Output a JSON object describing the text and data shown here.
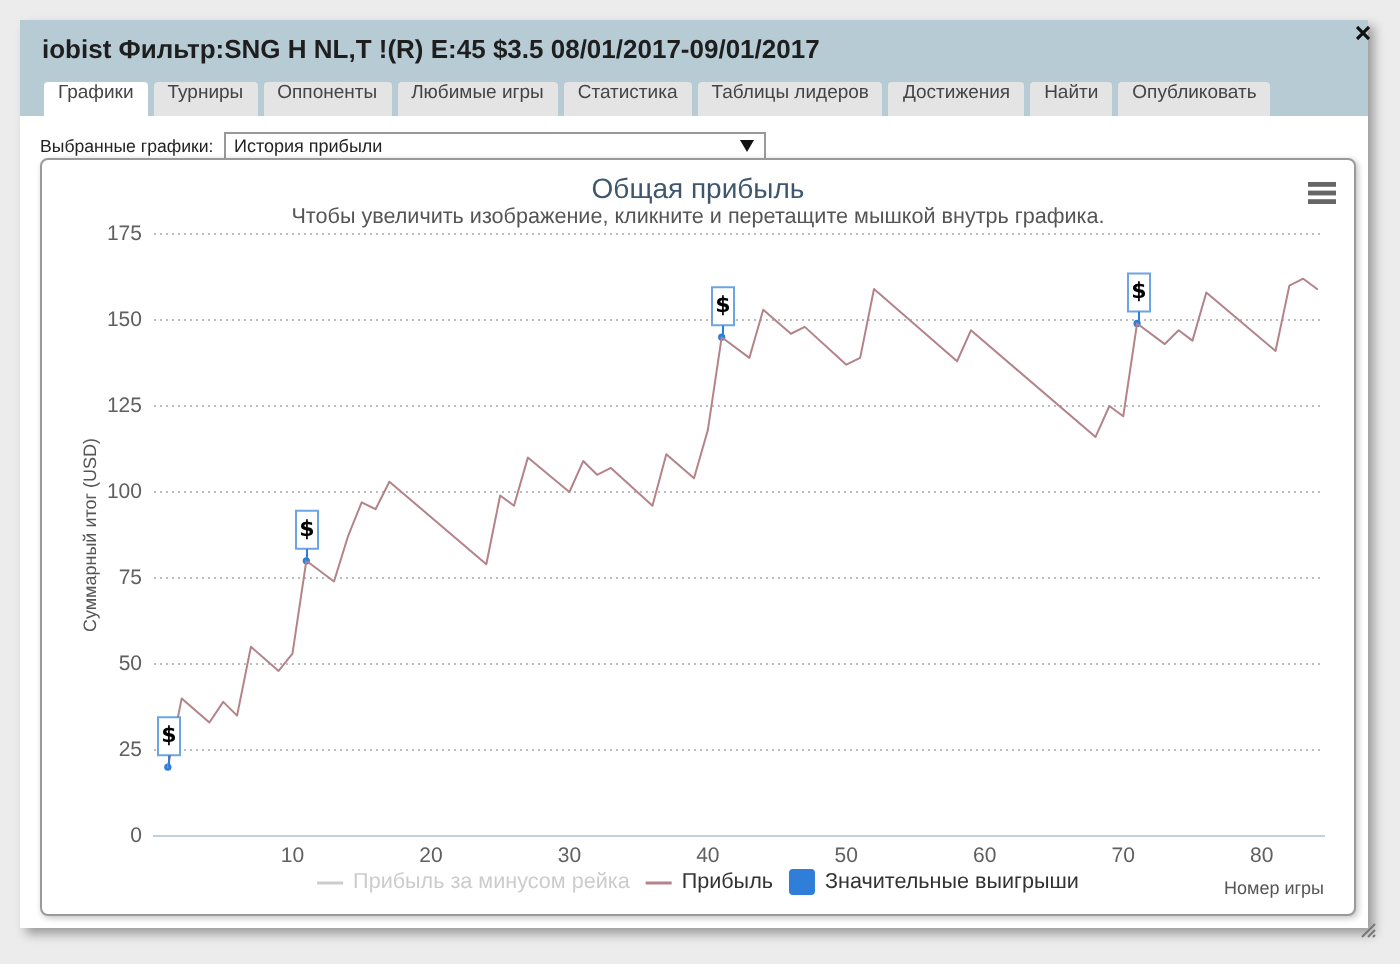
{
  "chart_data": {
    "type": "line",
    "title": "Общая прибыль",
    "subtitle": "Чтобы увеличить изображение, кликните и перетащите мышкой внутрь графика.",
    "xlabel": "Номер игры",
    "ylabel": "Суммарный итог (USD)",
    "annotations": [
      "iobist Фильтр:SNG H NL,T !(R) E:45 $3.5 08/01/2017-09/01/2017",
      "Графики",
      "Турниры",
      "Оппоненты",
      "Любимые игры",
      "Статистика",
      "Таблицы лидеров",
      "Достижения",
      "Найти",
      "Опубликовать",
      "Выбранные графики:",
      "История прибыли"
    ],
    "xlim": [
      0,
      84.5
    ],
    "xticks": [
      10,
      20,
      30,
      40,
      50,
      60,
      70,
      80
    ],
    "ylim": [
      0,
      175
    ],
    "yticks": [
      0,
      25,
      50,
      75,
      100,
      125,
      150,
      175
    ],
    "grid": "y",
    "legend": "bottom",
    "series": [
      {
        "name": "Прибыль за минусом рейка",
        "color": "#cccccc"
      },
      {
        "name": "Прибыль",
        "color": "#b4838a",
        "x": [
          1,
          2,
          4,
          5,
          6,
          7,
          9,
          10,
          11,
          13,
          14,
          15,
          16,
          17,
          24,
          25,
          26,
          27,
          30,
          31,
          32,
          33,
          36,
          37,
          39,
          40,
          41,
          43,
          44,
          46,
          47,
          50,
          51,
          52,
          58,
          59,
          68,
          69,
          70,
          71,
          73,
          74,
          75,
          76,
          81,
          82,
          83,
          84
        ],
        "values": [
          20,
          40,
          33,
          39,
          35,
          55,
          48,
          53,
          80,
          74,
          87,
          97,
          95,
          103,
          79,
          99,
          96,
          110,
          100,
          109,
          105,
          107,
          96,
          111,
          104,
          118,
          145,
          139,
          153,
          146,
          148,
          137,
          139,
          159,
          138,
          147,
          116,
          125,
          122,
          149,
          143,
          147,
          144,
          158,
          141,
          160,
          162,
          159
        ]
      },
      {
        "name": "Значительные выигрыши",
        "type": "scatter",
        "color": "#2f7ed8",
        "x": [
          1,
          11,
          41,
          71
        ],
        "values": [
          20,
          80,
          145,
          149
        ],
        "value_labels": [
          "$",
          "$",
          "$",
          "$"
        ]
      }
    ]
  }
}
